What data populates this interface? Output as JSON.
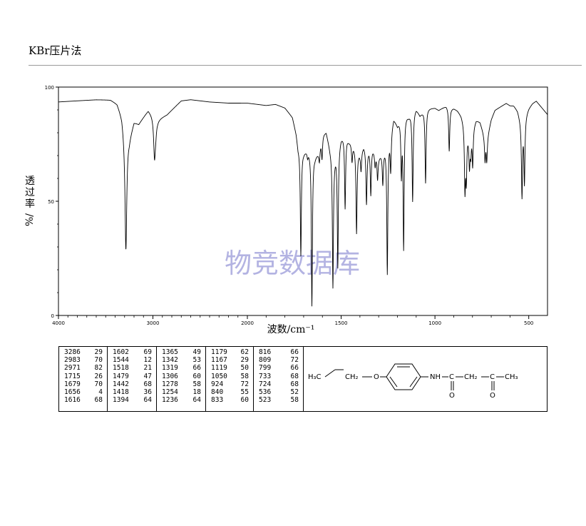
{
  "header": {
    "method": "KBr压片法"
  },
  "chart_data": {
    "type": "line",
    "title": "",
    "xlabel": "波数/cm⁻¹",
    "ylabel": "透过率 %/",
    "ylabel_chars": [
      "透",
      "过",
      "率",
      "%/"
    ],
    "watermark": "物竞数据库",
    "xlim": [
      4000,
      400
    ],
    "ylim": [
      0,
      100
    ],
    "x_ticks": [
      4000,
      3000,
      2000,
      1500,
      1000,
      500
    ],
    "x_tick_labels": [
      "4000",
      "3000",
      "2000",
      "1500",
      "1000",
      "500"
    ],
    "y_ticks": [
      0,
      50,
      100
    ],
    "y_tick_labels": [
      "0",
      "50",
      "100"
    ],
    "grid": false,
    "baseline": [
      [
        4000,
        93.5
      ],
      [
        3800,
        94
      ],
      [
        3600,
        94.5
      ],
      [
        3450,
        94.5
      ],
      [
        3380,
        93
      ],
      [
        3330,
        88
      ],
      [
        3300,
        80
      ],
      [
        3250,
        78
      ],
      [
        3200,
        85
      ],
      [
        3150,
        84
      ],
      [
        3100,
        87
      ],
      [
        3050,
        90
      ],
      [
        3000,
        88
      ],
      [
        2950,
        86
      ],
      [
        2900,
        87
      ],
      [
        2850,
        88
      ],
      [
        2800,
        90
      ],
      [
        2700,
        94
      ],
      [
        2600,
        94.5
      ],
      [
        2400,
        93.5
      ],
      [
        2200,
        93
      ],
      [
        2000,
        93
      ],
      [
        1900,
        92
      ],
      [
        1850,
        92.5
      ],
      [
        1800,
        91
      ],
      [
        1760,
        87
      ],
      [
        1740,
        80
      ],
      [
        1730,
        74
      ],
      [
        1700,
        72
      ],
      [
        1680,
        73
      ],
      [
        1660,
        72
      ],
      [
        1640,
        70
      ],
      [
        1620,
        72
      ],
      [
        1600,
        80
      ],
      [
        1580,
        81
      ],
      [
        1560,
        74
      ],
      [
        1540,
        70
      ],
      [
        1520,
        74
      ],
      [
        1500,
        79
      ],
      [
        1480,
        80
      ],
      [
        1460,
        77
      ],
      [
        1440,
        76
      ],
      [
        1420,
        73
      ],
      [
        1400,
        72
      ],
      [
        1380,
        75
      ],
      [
        1360,
        73
      ],
      [
        1340,
        75
      ],
      [
        1320,
        72
      ],
      [
        1300,
        70
      ],
      [
        1280,
        72
      ],
      [
        1260,
        75
      ],
      [
        1240,
        80
      ],
      [
        1220,
        87
      ],
      [
        1200,
        84
      ],
      [
        1180,
        88
      ],
      [
        1160,
        89
      ],
      [
        1140,
        88
      ],
      [
        1120,
        90
      ],
      [
        1100,
        91
      ],
      [
        1080,
        88
      ],
      [
        1060,
        90
      ],
      [
        1040,
        91
      ],
      [
        1020,
        91
      ],
      [
        1000,
        91
      ],
      [
        980,
        90
      ],
      [
        960,
        91
      ],
      [
        940,
        92
      ],
      [
        920,
        91
      ],
      [
        900,
        91
      ],
      [
        880,
        90
      ],
      [
        860,
        88
      ],
      [
        840,
        84
      ],
      [
        820,
        80
      ],
      [
        800,
        83
      ],
      [
        780,
        86
      ],
      [
        760,
        85
      ],
      [
        740,
        80
      ],
      [
        720,
        79
      ],
      [
        700,
        86
      ],
      [
        680,
        90
      ],
      [
        660,
        91
      ],
      [
        640,
        92
      ],
      [
        620,
        93
      ],
      [
        600,
        92
      ],
      [
        580,
        92
      ],
      [
        560,
        90
      ],
      [
        540,
        85
      ],
      [
        520,
        88
      ],
      [
        500,
        91
      ],
      [
        480,
        93
      ],
      [
        460,
        94
      ],
      [
        440,
        92
      ],
      [
        420,
        90
      ],
      [
        400,
        88
      ]
    ],
    "peaks": [
      {
        "x": 3286,
        "y": 29
      },
      {
        "x": 2983,
        "y": 70
      },
      {
        "x": 2971,
        "y": 82
      },
      {
        "x": 1715,
        "y": 26
      },
      {
        "x": 1679,
        "y": 70
      },
      {
        "x": 1656,
        "y": 4
      },
      {
        "x": 1616,
        "y": 68
      },
      {
        "x": 1602,
        "y": 69
      },
      {
        "x": 1544,
        "y": 12
      },
      {
        "x": 1518,
        "y": 21
      },
      {
        "x": 1479,
        "y": 47
      },
      {
        "x": 1442,
        "y": 68
      },
      {
        "x": 1418,
        "y": 36
      },
      {
        "x": 1394,
        "y": 64
      },
      {
        "x": 1365,
        "y": 49
      },
      {
        "x": 1342,
        "y": 53
      },
      {
        "x": 1319,
        "y": 66
      },
      {
        "x": 1306,
        "y": 60
      },
      {
        "x": 1278,
        "y": 58
      },
      {
        "x": 1254,
        "y": 18
      },
      {
        "x": 1236,
        "y": 64
      },
      {
        "x": 1179,
        "y": 62
      },
      {
        "x": 1167,
        "y": 29
      },
      {
        "x": 1119,
        "y": 50
      },
      {
        "x": 1050,
        "y": 58
      },
      {
        "x": 924,
        "y": 72
      },
      {
        "x": 840,
        "y": 55
      },
      {
        "x": 833,
        "y": 60
      },
      {
        "x": 816,
        "y": 66
      },
      {
        "x": 809,
        "y": 72
      },
      {
        "x": 799,
        "y": 66
      },
      {
        "x": 733,
        "y": 68
      },
      {
        "x": 724,
        "y": 68
      },
      {
        "x": 536,
        "y": 52
      },
      {
        "x": 523,
        "y": 58
      }
    ]
  },
  "peak_table": {
    "columns": [
      [
        [
          "3286",
          "29"
        ],
        [
          "2983",
          "70"
        ],
        [
          "2971",
          "82"
        ],
        [
          "1715",
          "26"
        ],
        [
          "1679",
          "70"
        ],
        [
          "1656",
          "4"
        ],
        [
          "1616",
          "68"
        ]
      ],
      [
        [
          "1602",
          "69"
        ],
        [
          "1544",
          "12"
        ],
        [
          "1518",
          "21"
        ],
        [
          "1479",
          "47"
        ],
        [
          "1442",
          "68"
        ],
        [
          "1418",
          "36"
        ],
        [
          "1394",
          "64"
        ]
      ],
      [
        [
          "1365",
          "49"
        ],
        [
          "1342",
          "53"
        ],
        [
          "1319",
          "66"
        ],
        [
          "1306",
          "60"
        ],
        [
          "1278",
          "58"
        ],
        [
          "1254",
          "18"
        ],
        [
          "1236",
          "64"
        ]
      ],
      [
        [
          "1179",
          "62"
        ],
        [
          "1167",
          "29"
        ],
        [
          "1119",
          "50"
        ],
        [
          "1050",
          "58"
        ],
        [
          "924",
          "72"
        ],
        [
          "840",
          "55"
        ],
        [
          "833",
          "60"
        ]
      ],
      [
        [
          "816",
          "66"
        ],
        [
          "809",
          "72"
        ],
        [
          "799",
          "66"
        ],
        [
          "733",
          "68"
        ],
        [
          "724",
          "68"
        ],
        [
          "536",
          "52"
        ],
        [
          "523",
          "58"
        ]
      ]
    ]
  },
  "structure": {
    "h3c": "H₃C",
    "ch2_a": "CH₂",
    "o_ether": "O",
    "nh": "NH",
    "c1": "C",
    "o1": "O",
    "ch2_b": "CH₂",
    "c2": "C",
    "o2": "O",
    "ch3": "CH₃"
  }
}
